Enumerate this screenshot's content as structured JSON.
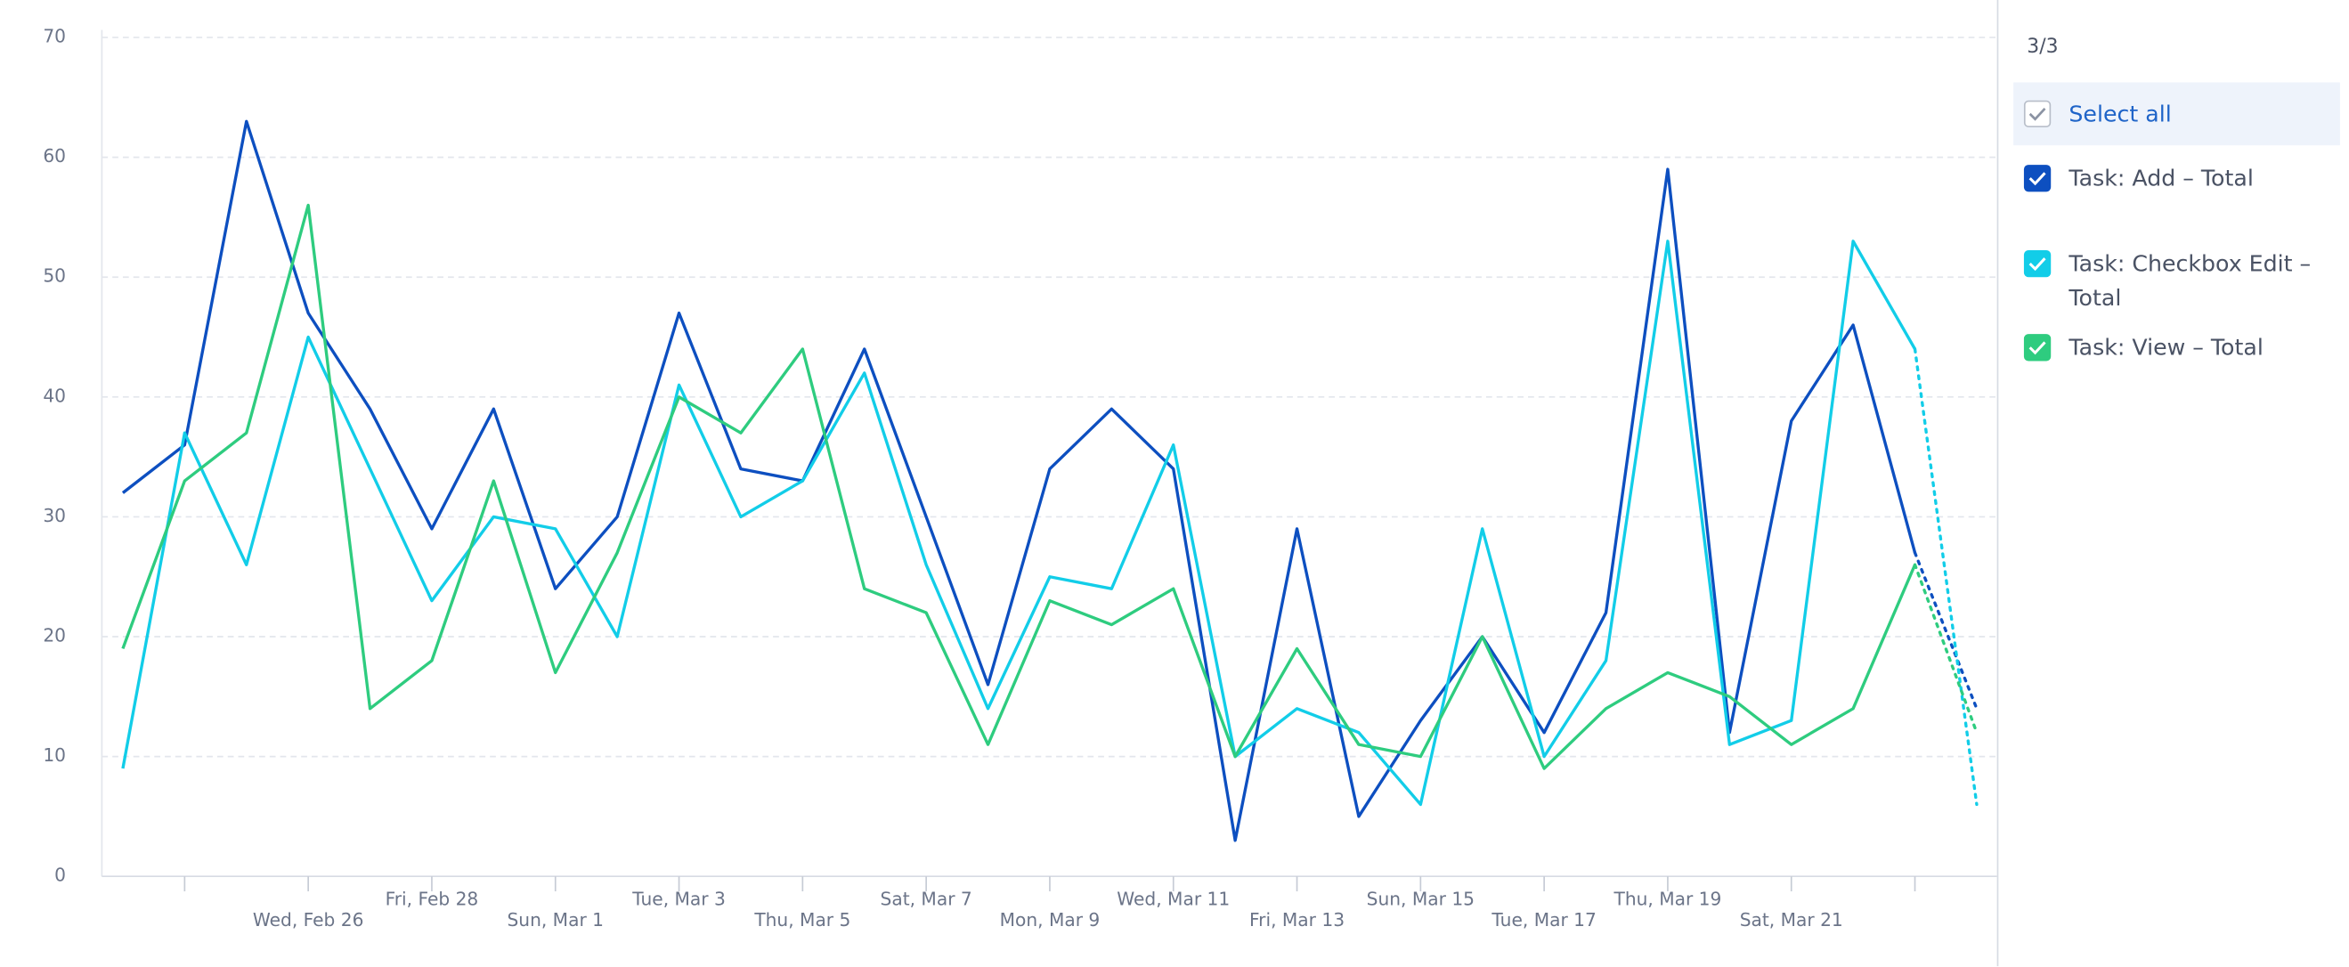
{
  "chart_data": {
    "type": "line",
    "categories": [
      null,
      null,
      null,
      "Wed, Feb 26",
      null,
      "Fri, Feb 28",
      null,
      "Sun, Mar 1",
      null,
      "Tue, Mar 3",
      null,
      "Thu, Mar 5",
      null,
      "Sat, Mar 7",
      null,
      "Mon, Mar 9",
      null,
      "Wed, Mar 11",
      null,
      "Fri, Mar 13",
      null,
      "Sun, Mar 15",
      null,
      "Tue, Mar 17",
      null,
      "Thu, Mar 19",
      null,
      "Sat, Mar 21",
      null,
      null,
      null
    ],
    "series": [
      {
        "name": "Task: Add – Total",
        "color": "#0d4fc0",
        "values": [
          32,
          36,
          63,
          47,
          39,
          29,
          39,
          24,
          30,
          47,
          34,
          33,
          44,
          30,
          16,
          34,
          39,
          34,
          3,
          29,
          5,
          13,
          20,
          12,
          22,
          59,
          12,
          38,
          46,
          27,
          14
        ]
      },
      {
        "name": "Task: Checkbox Edit – Total",
        "color": "#12cde8",
        "values": [
          9,
          37,
          26,
          45,
          34,
          23,
          30,
          29,
          20,
          41,
          30,
          33,
          42,
          26,
          14,
          25,
          24,
          36,
          10,
          14,
          12,
          6,
          29,
          10,
          18,
          53,
          11,
          13,
          53,
          44,
          6
        ]
      },
      {
        "name": "Task: View – Total",
        "color": "#2ecc7f",
        "values": [
          19,
          33,
          37,
          56,
          14,
          18,
          33,
          17,
          27,
          40,
          37,
          44,
          24,
          22,
          11,
          23,
          21,
          24,
          10,
          19,
          11,
          10,
          20,
          9,
          14,
          17,
          15,
          11,
          14,
          26,
          12
        ]
      }
    ],
    "ylim": [
      0,
      70
    ],
    "yticks": [
      0,
      10,
      20,
      30,
      40,
      50,
      60,
      70
    ],
    "grid": true,
    "selection": "3/3",
    "select_all": "Select all"
  }
}
